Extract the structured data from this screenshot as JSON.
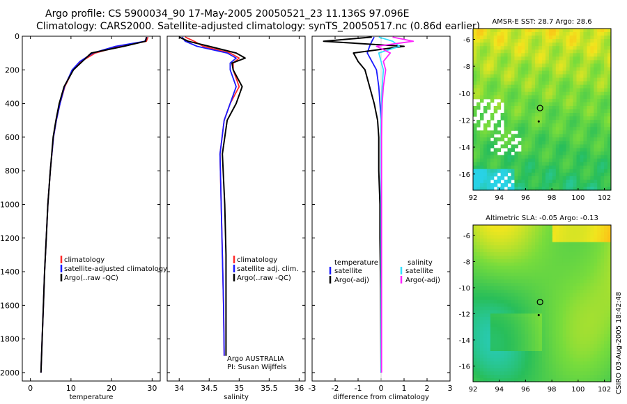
{
  "header": {
    "title_line1": "Argo profile: CS 5900034_90 17-May-2005 20050521_23 11.136S 97.096E",
    "title_line2": "Climatology: CARS2000. Satellite-adjusted climatology: synTS_20050517.nc (0.86d earlier)"
  },
  "credit": "CSIRO 03-Aug-2005 18:42:48",
  "colors": {
    "climatology": "#ff2a2a",
    "satellite": "#1a1aff",
    "argo": "#000000",
    "salinity_sat": "#33e0ff",
    "salinity_argo": "#ff22ff"
  },
  "chart_data": [
    {
      "type": "line",
      "name": "temperature",
      "xlabel": "temperature",
      "ylabel": "",
      "xlim": [
        -2,
        32
      ],
      "ylim": [
        2050,
        0
      ],
      "xticks": [
        0,
        10,
        20,
        30
      ],
      "yticks": [
        0,
        200,
        400,
        600,
        800,
        1000,
        1200,
        1400,
        1600,
        1800,
        2000
      ],
      "depth": [
        5,
        30,
        60,
        100,
        150,
        200,
        300,
        400,
        500,
        600,
        800,
        1000,
        1200,
        1400,
        1600,
        1800,
        2000
      ],
      "series": [
        {
          "name": "climatology",
          "color": "#ff2a2a",
          "values": [
            29,
            28.6,
            22,
            16,
            12.5,
            10.5,
            8.5,
            7.3,
            6.4,
            5.7,
            4.9,
            4.3,
            3.9,
            3.5,
            3.2,
            2.9,
            2.6
          ]
        },
        {
          "name": "satellite-adjusted climatology",
          "color": "#1a1aff",
          "values": [
            28.7,
            28.2,
            21,
            15.4,
            12.2,
            10.3,
            8.4,
            7.3,
            6.4,
            5.7,
            4.9,
            4.3,
            3.9,
            3.5,
            3.2,
            2.9,
            2.6
          ]
        },
        {
          "name": "Argo(..raw -QC)",
          "color": "#000000",
          "values": [
            28.6,
            28.4,
            23,
            15,
            12.8,
            10.6,
            8.3,
            7.1,
            6.3,
            5.6,
            4.9,
            4.3,
            3.9,
            3.5,
            3.2,
            2.9,
            2.6
          ]
        }
      ],
      "legend": [
        "climatology",
        "satellite-adjusted climatology",
        "Argo(..raw -QC)"
      ]
    },
    {
      "type": "line",
      "name": "salinity",
      "xlabel": "salinity",
      "ylabel": "",
      "xlim": [
        33.8,
        36.1
      ],
      "ylim": [
        2050,
        0
      ],
      "xticks": [
        34,
        34.5,
        35,
        35.5,
        36
      ],
      "depth": [
        5,
        30,
        60,
        100,
        130,
        160,
        200,
        300,
        400,
        500,
        700,
        1000,
        1300,
        1600,
        1900
      ],
      "series": [
        {
          "name": "climatology",
          "color": "#ff2a2a",
          "values": [
            34.1,
            34.25,
            34.4,
            34.85,
            35.0,
            34.9,
            34.9,
            35.0,
            34.85,
            34.75,
            34.68,
            34.7,
            34.72,
            34.74,
            34.75
          ]
        },
        {
          "name": "satellite adj. clim.",
          "color": "#1a1aff",
          "values": [
            34.05,
            34.1,
            34.3,
            34.8,
            34.95,
            34.85,
            34.85,
            34.95,
            34.85,
            34.75,
            34.68,
            34.7,
            34.72,
            34.74,
            34.75
          ]
        },
        {
          "name": "Argo(..raw -QC)",
          "color": "#000000",
          "values": [
            34.0,
            34.15,
            34.5,
            34.95,
            35.1,
            34.88,
            34.9,
            35.05,
            34.95,
            34.8,
            34.72,
            34.76,
            34.78,
            34.78,
            34.78
          ]
        }
      ],
      "legend": [
        "climatology",
        "satellite adj. clim.",
        "Argo(..raw -QC)"
      ],
      "annotation": [
        "Argo AUSTRALIA",
        "PI: Susan Wijffels"
      ]
    },
    {
      "type": "line",
      "name": "difference",
      "xlabel": "difference from climatology",
      "ylabel": "",
      "xlim": [
        -3,
        3
      ],
      "ylim": [
        2050,
        0
      ],
      "xticks": [
        -3,
        -2,
        -1,
        0,
        1,
        2,
        3
      ],
      "depth": [
        5,
        30,
        60,
        100,
        150,
        200,
        300,
        400,
        500,
        600,
        800,
        1000,
        1200,
        1500,
        2000
      ],
      "series": [
        {
          "name": "temperature satellite",
          "color": "#1a1aff",
          "values": [
            -0.3,
            -0.4,
            -0.5,
            -0.6,
            -0.4,
            -0.2,
            -0.1,
            -0.05,
            0,
            0,
            0,
            0,
            0,
            0,
            0
          ]
        },
        {
          "name": "temperature Argo(-adj)",
          "color": "#000000",
          "values": [
            -0.4,
            -2.5,
            1.0,
            -1.2,
            -1.0,
            -0.7,
            -0.5,
            -0.3,
            -0.15,
            -0.1,
            -0.1,
            -0.05,
            -0.05,
            -0.02,
            0
          ]
        },
        {
          "name": "salinity satellite",
          "color": "#33e0ff",
          "values": [
            -0.1,
            0.5,
            0.8,
            -0.1,
            0.0,
            0.1,
            0.05,
            0.02,
            0.0,
            0.0,
            0.0,
            0.0,
            0.0,
            0.0,
            0.0
          ]
        },
        {
          "name": "salinity Argo(-adj)",
          "color": "#ff22ff",
          "values": [
            0.5,
            1.4,
            -0.2,
            0.4,
            0.1,
            0.2,
            0.1,
            0.05,
            0.03,
            0.02,
            0.02,
            0.02,
            0.02,
            0.02,
            0.02
          ]
        }
      ],
      "legend_left_title": "temperature",
      "legend_right_title": "salinity",
      "legend_left": [
        "satellite",
        "Argo(-adj)"
      ],
      "legend_right": [
        "satellite",
        "Argo(-adj)"
      ]
    },
    {
      "type": "heatmap",
      "name": "sst_map",
      "title": "AMSR-E SST: 28.7 Argo: 28.6",
      "xlim": [
        92,
        102.5
      ],
      "ylim": [
        -17.2,
        -5.2
      ],
      "xticks": [
        92,
        94,
        96,
        98,
        100,
        102
      ],
      "yticks": [
        -6,
        -8,
        -10,
        -12,
        -14,
        -16
      ],
      "float_position": [
        97.1,
        -11.1
      ],
      "history_position": [
        97.0,
        -12.1
      ]
    },
    {
      "type": "heatmap",
      "name": "sla_map",
      "title": "Altimetric SLA: -0.05 Argo: -0.13",
      "xlim": [
        92,
        102.5
      ],
      "ylim": [
        -17.2,
        -5.2
      ],
      "xticks": [
        92,
        94,
        96,
        98,
        100,
        102
      ],
      "yticks": [
        -6,
        -8,
        -10,
        -12,
        -14,
        -16
      ],
      "float_position": [
        97.1,
        -11.1
      ],
      "history_position": [
        97.0,
        -12.1
      ]
    }
  ]
}
